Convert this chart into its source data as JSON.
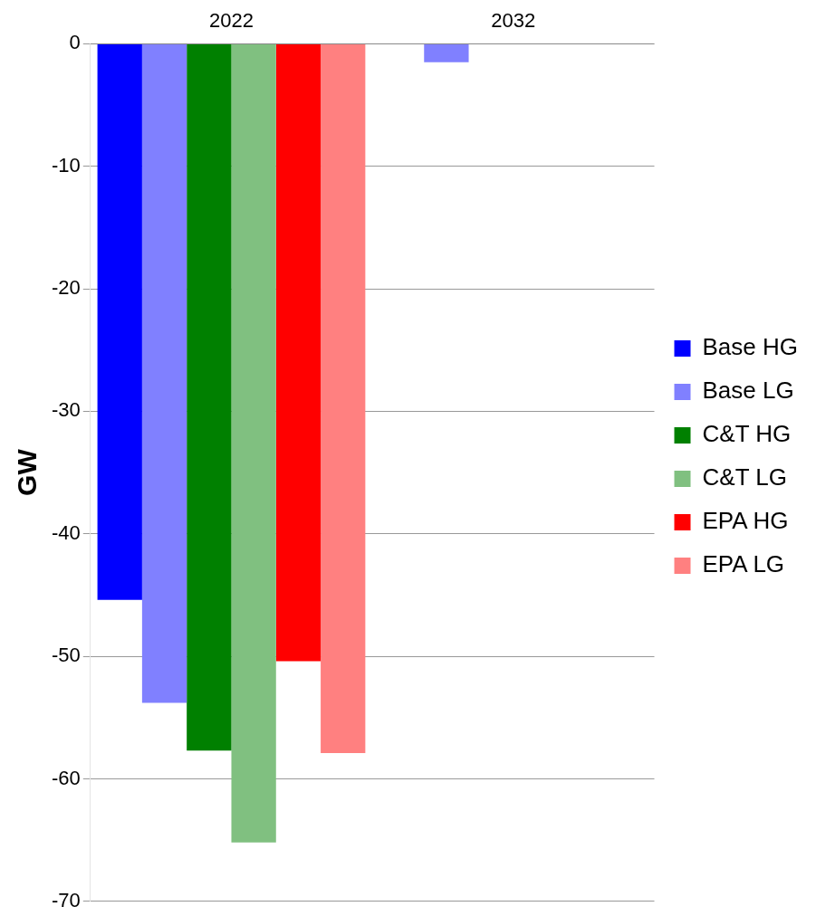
{
  "chart_data": {
    "type": "bar",
    "ylabel": "GW",
    "categories": [
      "2022",
      "2032"
    ],
    "series": [
      {
        "name": "Base HG",
        "color": "#0000ff",
        "values": [
          -45.4,
          0
        ]
      },
      {
        "name": "Base LG",
        "color": "#8080ff",
        "values": [
          -53.8,
          -1.5
        ]
      },
      {
        "name": "C&T HG",
        "color": "#008000",
        "values": [
          -57.7,
          0
        ]
      },
      {
        "name": "C&T LG",
        "color": "#80c080",
        "values": [
          -65.2,
          0
        ]
      },
      {
        "name": "EPA HG",
        "color": "#ff0000",
        "values": [
          -50.4,
          0
        ]
      },
      {
        "name": "EPA LG",
        "color": "#ff8080",
        "values": [
          -57.9,
          0
        ]
      }
    ],
    "ylim": [
      -70,
      0
    ],
    "yticks": [
      -70,
      -60,
      -50,
      -40,
      -30,
      -20,
      -10,
      0
    ],
    "grid": "y",
    "legend": "right"
  }
}
